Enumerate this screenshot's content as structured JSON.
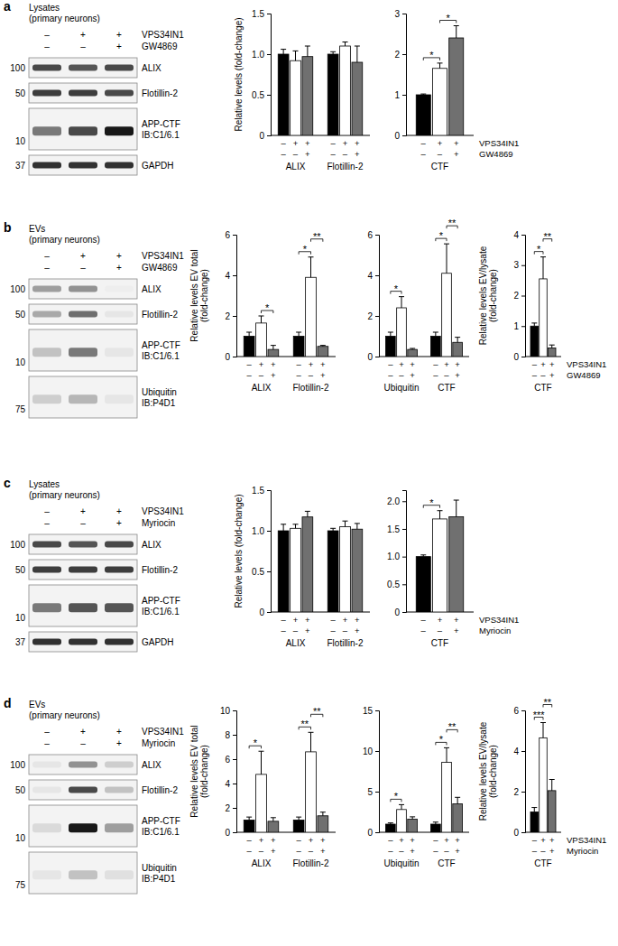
{
  "panels": [
    {
      "label": "a",
      "treatments": [
        {
          "name": "VPS34IN1",
          "signs": [
            "–",
            "+",
            "+"
          ]
        },
        {
          "name": "GW4869",
          "signs": [
            "–",
            "–",
            "+"
          ]
        }
      ],
      "blot": {
        "title": [
          "Lysates",
          "(primary neurons)"
        ],
        "bands": [
          {
            "mw": 100,
            "label": [
              "ALIX"
            ],
            "signal": [
              0.7,
              0.65,
              0.7
            ]
          },
          {
            "mw": 50,
            "label": [
              "Flotillin-2"
            ],
            "signal": [
              0.75,
              0.75,
              0.7
            ]
          },
          {
            "mw": 10,
            "label": [
              "APP-CTF",
              "IB:C1/6.1"
            ],
            "signal": [
              0.5,
              0.7,
              0.9
            ]
          },
          {
            "mw": 37,
            "label": [
              "GAPDH"
            ],
            "signal": [
              0.8,
              0.8,
              0.8
            ]
          }
        ]
      }
    },
    {
      "label": "b",
      "treatments": [
        {
          "name": "VPS34IN1",
          "signs": [
            "–",
            "+",
            "+"
          ]
        },
        {
          "name": "GW4869",
          "signs": [
            "–",
            "–",
            "+"
          ]
        }
      ],
      "blot": {
        "title": [
          "EVs",
          "(primary neurons)"
        ],
        "bands": [
          {
            "mw": 100,
            "label": [
              "ALIX"
            ],
            "signal": [
              0.35,
              0.4,
              0.02
            ]
          },
          {
            "mw": 50,
            "label": [
              "Flotillin-2"
            ],
            "signal": [
              0.3,
              0.55,
              0.05
            ]
          },
          {
            "mw": 10,
            "label": [
              "APP-CTF",
              "IB:C1/6.1"
            ],
            "signal": [
              0.2,
              0.5,
              0.05
            ]
          },
          {
            "mw": 75,
            "label": [
              "Ubiquitin",
              "IB:P4D1"
            ],
            "signal": [
              0.15,
              0.25,
              0.05
            ]
          }
        ]
      }
    },
    {
      "label": "c",
      "treatments": [
        {
          "name": "VPS34IN1",
          "signs": [
            "–",
            "+",
            "+"
          ]
        },
        {
          "name": "Myriocin",
          "signs": [
            "–",
            "–",
            "+"
          ]
        }
      ],
      "blot": {
        "title": [
          "Lysates",
          "(primary neurons)"
        ],
        "bands": [
          {
            "mw": 100,
            "label": [
              "ALIX"
            ],
            "signal": [
              0.7,
              0.65,
              0.7
            ]
          },
          {
            "mw": 50,
            "label": [
              "Flotillin-2"
            ],
            "signal": [
              0.75,
              0.75,
              0.75
            ]
          },
          {
            "mw": 10,
            "label": [
              "APP-CTF",
              "IB:C1/6.1"
            ],
            "signal": [
              0.5,
              0.65,
              0.65
            ]
          },
          {
            "mw": 37,
            "label": [
              "GAPDH"
            ],
            "signal": [
              0.8,
              0.8,
              0.8
            ]
          }
        ]
      }
    },
    {
      "label": "d",
      "treatments": [
        {
          "name": "VPS34IN1",
          "signs": [
            "–",
            "+",
            "+"
          ]
        },
        {
          "name": "Myriocin",
          "signs": [
            "–",
            "–",
            "+"
          ]
        }
      ],
      "blot": {
        "title": [
          "EVs",
          "(primary neurons)"
        ],
        "bands": [
          {
            "mw": 100,
            "label": [
              "ALIX"
            ],
            "signal": [
              0.05,
              0.4,
              0.15
            ]
          },
          {
            "mw": 50,
            "label": [
              "Flotillin-2"
            ],
            "signal": [
              0.05,
              0.7,
              0.2
            ]
          },
          {
            "mw": 10,
            "label": [
              "APP-CTF",
              "IB:C1/6.1"
            ],
            "signal": [
              0.1,
              0.9,
              0.35
            ]
          },
          {
            "mw": 75,
            "label": [
              "Ubiquitin",
              "IB:P4D1"
            ],
            "signal": [
              0.05,
              0.2,
              0.08
            ]
          }
        ]
      }
    }
  ],
  "chart_data": [
    {
      "type": "bar",
      "panel": "a",
      "ylabel": [
        "Relative levels (fold-change)"
      ],
      "ylim": [
        0,
        1.5
      ],
      "yticks": [
        0,
        0.5,
        {
          "value": 1,
          "label": "1.0"
        },
        1.5
      ],
      "categories": [
        "ALIX",
        "Flotillin-2"
      ],
      "series": [
        {
          "color": "#000000",
          "values": [
            1.0,
            1.0
          ],
          "errors": [
            0.06,
            0.03
          ]
        },
        {
          "color": "#ffffff",
          "values": [
            0.92,
            1.1
          ],
          "errors": [
            0.12,
            0.05
          ]
        },
        {
          "color": "#707070",
          "values": [
            0.97,
            0.9
          ],
          "errors": [
            0.13,
            0.2
          ]
        }
      ]
    },
    {
      "type": "bar",
      "panel": "a",
      "ylim": [
        0,
        3
      ],
      "yticks": [
        0,
        1,
        2,
        3
      ],
      "categories": [
        "CTF"
      ],
      "series": [
        {
          "color": "#000000",
          "values": [
            1.0
          ],
          "errors": [
            0.02
          ]
        },
        {
          "color": "#ffffff",
          "values": [
            1.65
          ],
          "errors": [
            0.13
          ]
        },
        {
          "color": "#707070",
          "values": [
            2.4
          ],
          "errors": [
            0.3
          ]
        }
      ],
      "annotations": [
        {
          "text": "*",
          "category": 0,
          "from": 0,
          "to": 1
        },
        {
          "text": "*",
          "category": 0,
          "from": 1,
          "to": 2
        }
      ]
    },
    {
      "type": "bar",
      "panel": "b",
      "ylabel": [
        "Relative levels EV total",
        "(fold-change)"
      ],
      "ylim": [
        0,
        6
      ],
      "yticks": [
        0,
        2,
        4,
        6
      ],
      "categories": [
        "ALIX",
        "Flotillin-2"
      ],
      "series": [
        {
          "color": "#000000",
          "values": [
            1.0,
            1.0
          ],
          "errors": [
            0.2,
            0.2
          ]
        },
        {
          "color": "#ffffff",
          "values": [
            1.65,
            3.9
          ],
          "errors": [
            0.35,
            1.0
          ]
        },
        {
          "color": "#707070",
          "values": [
            0.35,
            0.5
          ],
          "errors": [
            0.2,
            0.05
          ]
        }
      ],
      "annotations": [
        {
          "text": "*",
          "category": 0,
          "from": 1,
          "to": 2
        },
        {
          "text": "*",
          "category": 1,
          "from": 0,
          "to": 1
        },
        {
          "text": "**",
          "category": 1,
          "from": 1,
          "to": 2
        }
      ]
    },
    {
      "type": "bar",
      "panel": "b",
      "ylim": [
        0,
        6
      ],
      "yticks": [
        0,
        2,
        4,
        6
      ],
      "categories": [
        "Ubiquitin",
        "CTF"
      ],
      "series": [
        {
          "color": "#000000",
          "values": [
            1.0,
            1.0
          ],
          "errors": [
            0.2,
            0.2
          ]
        },
        {
          "color": "#ffffff",
          "values": [
            2.4,
            4.1
          ],
          "errors": [
            0.55,
            1.45
          ]
        },
        {
          "color": "#707070",
          "values": [
            0.35,
            0.7
          ],
          "errors": [
            0.05,
            0.25
          ]
        }
      ],
      "annotations": [
        {
          "text": "*",
          "category": 0,
          "from": 0,
          "to": 1
        },
        {
          "text": "*",
          "category": 1,
          "from": 0,
          "to": 1
        },
        {
          "text": "**",
          "category": 1,
          "from": 1,
          "to": 2
        }
      ]
    },
    {
      "type": "bar",
      "panel": "b",
      "ylabel": [
        "Relative levels EV/lysate",
        "(fold-change)"
      ],
      "ylim": [
        0,
        4
      ],
      "yticks": [
        0,
        1,
        2,
        3,
        4
      ],
      "categories": [
        "CTF"
      ],
      "series": [
        {
          "color": "#000000",
          "values": [
            1.0
          ],
          "errors": [
            0.1
          ]
        },
        {
          "color": "#ffffff",
          "values": [
            2.55
          ],
          "errors": [
            0.72
          ]
        },
        {
          "color": "#707070",
          "values": [
            0.28
          ],
          "errors": [
            0.1
          ]
        }
      ],
      "annotations": [
        {
          "text": "*",
          "category": 0,
          "from": 0,
          "to": 1
        },
        {
          "text": "**",
          "category": 0,
          "from": 1,
          "to": 2
        }
      ]
    },
    {
      "type": "bar",
      "panel": "c",
      "ylabel": [
        "Relative levels (fold-change)"
      ],
      "ylim": [
        0,
        1.5
      ],
      "yticks": [
        0,
        0.5,
        {
          "value": 1,
          "label": "1.0"
        },
        1.5
      ],
      "categories": [
        "ALIX",
        "Flotillin-2"
      ],
      "series": [
        {
          "color": "#000000",
          "values": [
            1.0,
            1.0
          ],
          "errors": [
            0.08,
            0.03
          ]
        },
        {
          "color": "#ffffff",
          "values": [
            1.03,
            1.05
          ],
          "errors": [
            0.05,
            0.07
          ]
        },
        {
          "color": "#707070",
          "values": [
            1.17,
            1.02
          ],
          "errors": [
            0.07,
            0.07
          ]
        }
      ]
    },
    {
      "type": "bar",
      "panel": "c",
      "ylim": [
        0,
        2.2
      ],
      "yticks": [
        0,
        0.5,
        {
          "value": 1,
          "label": "1.0"
        },
        1.5,
        {
          "value": 2,
          "label": "2.0"
        }
      ],
      "categories": [
        "CTF"
      ],
      "series": [
        {
          "color": "#000000",
          "values": [
            1.0
          ],
          "errors": [
            0.03
          ]
        },
        {
          "color": "#ffffff",
          "values": [
            1.68
          ],
          "errors": [
            0.15
          ]
        },
        {
          "color": "#707070",
          "values": [
            1.72
          ],
          "errors": [
            0.3
          ]
        }
      ],
      "annotations": [
        {
          "text": "*",
          "category": 0,
          "from": 0,
          "to": 1
        }
      ]
    },
    {
      "type": "bar",
      "panel": "d",
      "ylabel": [
        "Relative levels EV total",
        "(fold-change)"
      ],
      "ylim": [
        0,
        10
      ],
      "yticks": [
        0,
        2,
        4,
        6,
        8,
        10
      ],
      "categories": [
        "ALIX",
        "Flotillin-2"
      ],
      "series": [
        {
          "color": "#000000",
          "values": [
            1.0,
            1.0
          ],
          "errors": [
            0.25,
            0.25
          ]
        },
        {
          "color": "#ffffff",
          "values": [
            4.75,
            6.6
          ],
          "errors": [
            1.9,
            1.6
          ]
        },
        {
          "color": "#707070",
          "values": [
            0.9,
            1.35
          ],
          "errors": [
            0.3,
            0.3
          ]
        }
      ],
      "annotations": [
        {
          "text": "*",
          "category": 0,
          "from": 0,
          "to": 1
        },
        {
          "text": "**",
          "category": 1,
          "from": 0,
          "to": 1
        },
        {
          "text": "**",
          "category": 1,
          "from": 1,
          "to": 2
        }
      ]
    },
    {
      "type": "bar",
      "panel": "d",
      "ylim": [
        0,
        15
      ],
      "yticks": [
        0,
        5,
        10,
        15
      ],
      "categories": [
        "Ubiquitin",
        "CTF"
      ],
      "series": [
        {
          "color": "#000000",
          "values": [
            1.0,
            1.0
          ],
          "errors": [
            0.15,
            0.25
          ]
        },
        {
          "color": "#ffffff",
          "values": [
            2.8,
            8.6
          ],
          "errors": [
            0.6,
            1.8
          ]
        },
        {
          "color": "#707070",
          "values": [
            1.6,
            3.5
          ],
          "errors": [
            0.3,
            0.8
          ]
        }
      ],
      "annotations": [
        {
          "text": "*",
          "category": 0,
          "from": 0,
          "to": 1
        },
        {
          "text": "*",
          "category": 1,
          "from": 0,
          "to": 1
        },
        {
          "text": "**",
          "category": 1,
          "from": 1,
          "to": 2
        }
      ]
    },
    {
      "type": "bar",
      "panel": "d",
      "ylabel": [
        "Relative levels EV/lysate",
        "(fold-change)"
      ],
      "ylim": [
        0,
        6
      ],
      "yticks": [
        0,
        2,
        4,
        6
      ],
      "categories": [
        "CTF"
      ],
      "series": [
        {
          "color": "#000000",
          "values": [
            1.0
          ],
          "errors": [
            0.22
          ]
        },
        {
          "color": "#ffffff",
          "values": [
            4.65
          ],
          "errors": [
            0.75
          ]
        },
        {
          "color": "#707070",
          "values": [
            2.05
          ],
          "errors": [
            0.55
          ]
        }
      ],
      "annotations": [
        {
          "text": "***",
          "category": 0,
          "from": 0,
          "to": 1
        },
        {
          "text": "**",
          "category": 0,
          "from": 1,
          "to": 2
        }
      ]
    }
  ]
}
